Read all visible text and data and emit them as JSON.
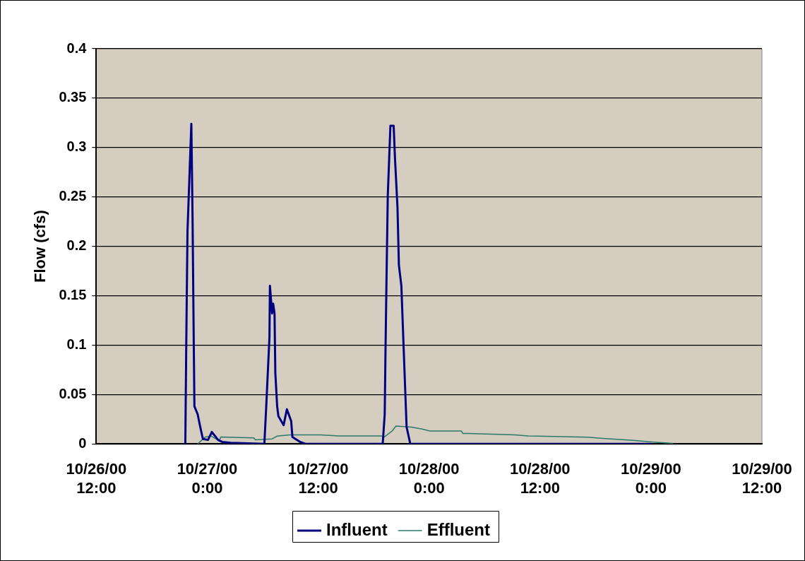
{
  "chart_data": {
    "type": "line",
    "ylabel": "Flow (cfs)",
    "xlim": [
      "2000-10-26T12:00",
      "2000-10-29T12:00"
    ],
    "xticks": [
      {
        "value": "2000-10-26T12:00",
        "label": "10/26/00 12:00"
      },
      {
        "value": "2000-10-27T00:00",
        "label": "10/27/00 0:00"
      },
      {
        "value": "2000-10-27T12:00",
        "label": "10/27/00 12:00"
      },
      {
        "value": "2000-10-28T00:00",
        "label": "10/28/00 0:00"
      },
      {
        "value": "2000-10-28T12:00",
        "label": "10/28/00 12:00"
      },
      {
        "value": "2000-10-29T00:00",
        "label": "10/29/00 0:00"
      },
      {
        "value": "2000-10-29T12:00",
        "label": "10/29/00 12:00"
      }
    ],
    "ylim": [
      0,
      0.4
    ],
    "yticks": [
      0,
      0.05,
      0.1,
      0.15,
      0.2,
      0.25,
      0.3,
      0.35,
      0.4
    ],
    "grid": "y",
    "legend": "bottom",
    "marker": "none",
    "series": [
      {
        "name": "Influent",
        "color": "#000080",
        "x": [
          "2000-10-26T21:38",
          "2000-10-26T21:44",
          "2000-10-26T21:52",
          "2000-10-26T22:17",
          "2000-10-26T22:25",
          "2000-10-26T22:33",
          "2000-10-26T22:37",
          "2000-10-26T22:58",
          "2000-10-26T23:15",
          "2000-10-26T23:32",
          "2000-10-27T00:05",
          "2000-10-27T00:30",
          "2000-10-27T01:11",
          "2000-10-27T01:37",
          "2000-10-27T02:33",
          "2000-10-27T06:11",
          "2000-10-27T06:24",
          "2000-10-27T06:44",
          "2000-10-27T06:47",
          "2000-10-27T07:01",
          "2000-10-27T07:08",
          "2000-10-27T07:17",
          "2000-10-27T07:22",
          "2000-10-27T07:34",
          "2000-10-27T07:42",
          "2000-10-27T08:16",
          "2000-10-27T08:37",
          "2000-10-27T09:05",
          "2000-10-27T09:13",
          "2000-10-27T10:03",
          "2000-10-27T10:37",
          "2000-10-27T18:59",
          "2000-10-27T19:12",
          "2000-10-27T19:17",
          "2000-10-27T19:24",
          "2000-10-27T19:32",
          "2000-10-27T19:49",
          "2000-10-27T20:10",
          "2000-10-27T20:19",
          "2000-10-27T20:35",
          "2000-10-27T20:44",
          "2000-10-27T21:00",
          "2000-10-27T21:17",
          "2000-10-27T21:34",
          "2000-10-27T21:58",
          "2000-10-29T00:01"
        ],
        "values": [
          0,
          0.1,
          0.215,
          0.324,
          0.228,
          0.098,
          0.038,
          0.03,
          0.017,
          0.005,
          0.004,
          0.012,
          0.004,
          0.002,
          0.001,
          0,
          0.041,
          0.108,
          0.16,
          0.132,
          0.142,
          0.132,
          0.072,
          0.038,
          0.028,
          0.019,
          0.035,
          0.023,
          0.007,
          0.002,
          0,
          0,
          0.03,
          0.093,
          0.171,
          0.252,
          0.322,
          0.322,
          0.288,
          0.239,
          0.181,
          0.16,
          0.088,
          0.017,
          0,
          0
        ]
      },
      {
        "name": "Effluent",
        "color": "#2a7a6a",
        "x": [
          "2000-10-26T22:58",
          "2000-10-26T23:48",
          "2000-10-27T00:28",
          "2000-10-27T01:18",
          "2000-10-27T01:28",
          "2000-10-27T05:02",
          "2000-10-27T05:13",
          "2000-10-27T07:01",
          "2000-10-27T07:32",
          "2000-10-27T08:57",
          "2000-10-27T12:16",
          "2000-10-27T14:11",
          "2000-10-27T18:50",
          "2000-10-27T19:10",
          "2000-10-27T20:00",
          "2000-10-27T20:25",
          "2000-10-27T22:05",
          "2000-10-27T23:15",
          "2000-10-28T00:05",
          "2000-10-28T03:29",
          "2000-10-28T03:39",
          "2000-10-28T04:19",
          "2000-10-28T09:18",
          "2000-10-28T10:43",
          "2000-10-28T17:07",
          "2000-10-28T18:47",
          "2000-10-28T22:06",
          "2000-10-29T00:01",
          "2000-10-29T02:21"
        ],
        "values": [
          0,
          0.007,
          0.0078,
          0.003,
          0.007,
          0.006,
          0.004,
          0.005,
          0.0078,
          0.009,
          0.009,
          0.008,
          0.008,
          0.007,
          0.013,
          0.018,
          0.017,
          0.015,
          0.013,
          0.013,
          0.0106,
          0.0106,
          0.009,
          0.008,
          0.0068,
          0.0055,
          0.0035,
          0.002,
          0.0005
        ]
      }
    ]
  }
}
